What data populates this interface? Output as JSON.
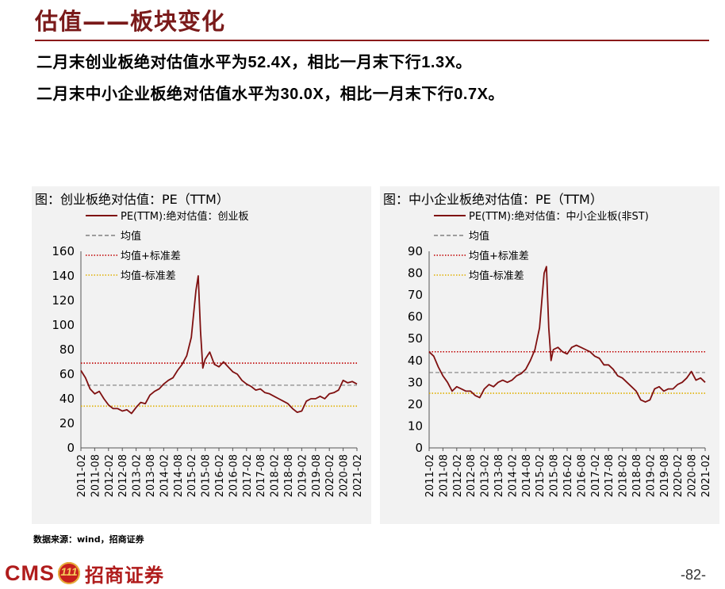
{
  "page": {
    "title": "估值——板块变化",
    "line1": {
      "pre": "二月末创业板绝对估值水平为",
      "v1": "52.4X",
      "mid": "，相比一月末下行",
      "v2": "1.3X",
      "post": "。"
    },
    "line2": {
      "pre": "二月末中小企业板绝对估值水平为",
      "v1": "30.0X",
      "mid": "，相比一月末下行",
      "v2": "0.7X",
      "post": "。"
    },
    "source": "数据来源：wind，招商证券",
    "logo_cms": "CMS",
    "logo_badge": "111",
    "logo_cn": "招商证券",
    "page_number": "-82-"
  },
  "chart_data": [
    {
      "type": "line",
      "title": "图：创业板绝对估值：PE（TTM）",
      "x_ticks": [
        "2011-02",
        "2011-08",
        "2012-02",
        "2012-08",
        "2013-02",
        "2013-08",
        "2014-02",
        "2014-08",
        "2015-02",
        "2015-08",
        "2016-02",
        "2016-08",
        "2017-02",
        "2017-08",
        "2018-02",
        "2018-08",
        "2019-02",
        "2019-08",
        "2020-02",
        "2020-08",
        "2021-02"
      ],
      "ylim": [
        0,
        160
      ],
      "y_ticks": [
        0,
        20,
        40,
        60,
        80,
        100,
        120,
        140,
        160
      ],
      "series": [
        {
          "name": "PE(TTM):绝对估值：创业板",
          "color": "#7f1010",
          "style": "solid",
          "x": [
            "2011-02",
            "2011-04",
            "2011-06",
            "2011-08",
            "2011-10",
            "2011-12",
            "2012-02",
            "2012-04",
            "2012-06",
            "2012-08",
            "2012-10",
            "2012-12",
            "2013-02",
            "2013-04",
            "2013-06",
            "2013-08",
            "2013-10",
            "2013-12",
            "2014-02",
            "2014-04",
            "2014-06",
            "2014-08",
            "2014-10",
            "2014-12",
            "2015-02",
            "2015-04",
            "2015-05",
            "2015-06",
            "2015-07",
            "2015-08",
            "2015-10",
            "2015-12",
            "2016-02",
            "2016-04",
            "2016-06",
            "2016-08",
            "2016-10",
            "2016-12",
            "2017-02",
            "2017-04",
            "2017-06",
            "2017-08",
            "2017-10",
            "2017-12",
            "2018-02",
            "2018-04",
            "2018-06",
            "2018-08",
            "2018-10",
            "2018-12",
            "2019-02",
            "2019-04",
            "2019-06",
            "2019-08",
            "2019-10",
            "2019-12",
            "2020-02",
            "2020-04",
            "2020-06",
            "2020-08",
            "2020-10",
            "2020-12",
            "2021-02"
          ],
          "y": [
            63,
            57,
            48,
            44,
            46,
            40,
            35,
            32,
            32,
            30,
            31,
            28,
            33,
            37,
            36,
            43,
            46,
            48,
            52,
            55,
            57,
            63,
            68,
            75,
            90,
            128,
            140,
            95,
            65,
            72,
            78,
            68,
            66,
            70,
            66,
            62,
            60,
            55,
            52,
            50,
            47,
            48,
            45,
            44,
            42,
            40,
            38,
            36,
            32,
            29,
            30,
            38,
            40,
            40,
            42,
            40,
            44,
            45,
            47,
            55,
            53,
            54,
            52
          ]
        },
        {
          "name": "均值",
          "color": "#7f7f7f",
          "style": "dashed",
          "value": 51
        },
        {
          "name": "均值+标准差",
          "color": "#c00000",
          "style": "dotted",
          "value": 69
        },
        {
          "name": "均值-标准差",
          "color": "#e0b000",
          "style": "dotted",
          "value": 34
        }
      ]
    },
    {
      "type": "line",
      "title": "图：中小企业板绝对估值：PE（TTM）",
      "x_ticks": [
        "2011-02",
        "2011-08",
        "2012-02",
        "2012-08",
        "2013-02",
        "2013-08",
        "2014-02",
        "2014-08",
        "2015-02",
        "2015-08",
        "2016-02",
        "2016-08",
        "2017-02",
        "2017-08",
        "2018-02",
        "2018-08",
        "2019-02",
        "2019-08",
        "2020-02",
        "2020-08",
        "2021-02"
      ],
      "ylim": [
        0,
        90
      ],
      "y_ticks": [
        0,
        10,
        20,
        30,
        40,
        50,
        60,
        70,
        80,
        90
      ],
      "series": [
        {
          "name": "PE(TTM):绝对估值：中小企业板(非ST)",
          "color": "#7f1010",
          "style": "solid",
          "x": [
            "2011-02",
            "2011-04",
            "2011-06",
            "2011-08",
            "2011-10",
            "2011-12",
            "2012-02",
            "2012-04",
            "2012-06",
            "2012-08",
            "2012-10",
            "2012-12",
            "2013-02",
            "2013-04",
            "2013-06",
            "2013-08",
            "2013-10",
            "2013-12",
            "2014-02",
            "2014-04",
            "2014-06",
            "2014-08",
            "2014-10",
            "2014-12",
            "2015-02",
            "2015-04",
            "2015-05",
            "2015-06",
            "2015-07",
            "2015-08",
            "2015-10",
            "2015-12",
            "2016-02",
            "2016-04",
            "2016-06",
            "2016-08",
            "2016-10",
            "2016-12",
            "2017-02",
            "2017-04",
            "2017-06",
            "2017-08",
            "2017-10",
            "2017-12",
            "2018-02",
            "2018-04",
            "2018-06",
            "2018-08",
            "2018-10",
            "2018-12",
            "2019-02",
            "2019-04",
            "2019-06",
            "2019-08",
            "2019-10",
            "2019-12",
            "2020-02",
            "2020-04",
            "2020-06",
            "2020-08",
            "2020-10",
            "2020-12",
            "2021-02"
          ],
          "y": [
            44,
            42,
            37,
            33,
            30,
            26,
            28,
            27,
            26,
            26,
            24,
            23,
            27,
            29,
            28,
            30,
            31,
            30,
            31,
            33,
            34,
            36,
            40,
            45,
            55,
            80,
            83,
            55,
            40,
            45,
            46,
            44,
            43,
            46,
            47,
            46,
            45,
            44,
            42,
            41,
            38,
            38,
            36,
            33,
            32,
            30,
            28,
            26,
            22,
            21,
            22,
            27,
            28,
            26,
            27,
            27,
            29,
            30,
            32,
            35,
            31,
            32,
            30
          ]
        },
        {
          "name": "均值",
          "color": "#7f7f7f",
          "style": "dashed",
          "value": 34.5
        },
        {
          "name": "均值+标准差",
          "color": "#c00000",
          "style": "dotted",
          "value": 44
        },
        {
          "name": "均值-标准差",
          "color": "#e0b000",
          "style": "dotted",
          "value": 25
        }
      ]
    }
  ]
}
